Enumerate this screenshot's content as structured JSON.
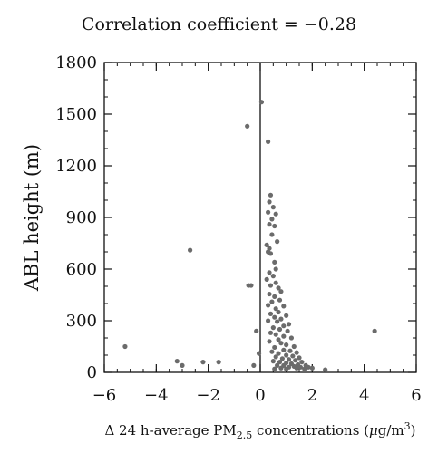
{
  "chart_data": {
    "type": "scatter",
    "title": "Correlation coefficient = −0.28",
    "xlabel_main": "Δ 24 h-average PM",
    "xlabel_sub": "2.5",
    "xlabel_rest": " concentrations (",
    "xlabel_mu": "μ",
    "xlabel_unit": "g/m",
    "xlabel_sup": "3",
    "xlabel_close": ")",
    "ylabel": "ABL height (m)",
    "xlim": [
      -6,
      6
    ],
    "ylim": [
      0,
      1800
    ],
    "x_ticks": [
      -6,
      -4,
      -2,
      0,
      2,
      4,
      6
    ],
    "x_tick_labels": [
      "−6",
      "−4",
      "−2",
      "0",
      "2",
      "4",
      "6"
    ],
    "y_ticks": [
      0,
      300,
      600,
      900,
      1200,
      1500,
      1800
    ],
    "y_tick_labels": [
      "0",
      "300",
      "600",
      "900",
      "1200",
      "1500",
      "1800"
    ],
    "zero_line_x": 0,
    "grid": false,
    "marker_color": "#6b6b6b",
    "points": [
      {
        "x": -5.2,
        "y": 150
      },
      {
        "x": -3.2,
        "y": 65
      },
      {
        "x": -3.0,
        "y": 40
      },
      {
        "x": -2.7,
        "y": 710
      },
      {
        "x": -2.2,
        "y": 60
      },
      {
        "x": -1.6,
        "y": 60
      },
      {
        "x": -0.5,
        "y": 1430
      },
      {
        "x": -0.45,
        "y": 505
      },
      {
        "x": -0.35,
        "y": 505
      },
      {
        "x": -0.25,
        "y": 40
      },
      {
        "x": -0.15,
        "y": 240
      },
      {
        "x": -0.05,
        "y": 110
      },
      {
        "x": 0.05,
        "y": 1570
      },
      {
        "x": 0.3,
        "y": 1340
      },
      {
        "x": 0.4,
        "y": 1030
      },
      {
        "x": 0.35,
        "y": 990
      },
      {
        "x": 0.5,
        "y": 960
      },
      {
        "x": 0.3,
        "y": 930
      },
      {
        "x": 0.6,
        "y": 920
      },
      {
        "x": 0.45,
        "y": 890
      },
      {
        "x": 0.35,
        "y": 860
      },
      {
        "x": 0.55,
        "y": 850
      },
      {
        "x": 0.45,
        "y": 800
      },
      {
        "x": 0.65,
        "y": 760
      },
      {
        "x": 0.25,
        "y": 740
      },
      {
        "x": 0.35,
        "y": 720
      },
      {
        "x": 0.3,
        "y": 700
      },
      {
        "x": 0.4,
        "y": 690
      },
      {
        "x": 0.55,
        "y": 640
      },
      {
        "x": 0.6,
        "y": 600
      },
      {
        "x": 0.35,
        "y": 580
      },
      {
        "x": 0.5,
        "y": 560
      },
      {
        "x": 0.25,
        "y": 540
      },
      {
        "x": 0.6,
        "y": 520
      },
      {
        "x": 0.4,
        "y": 505
      },
      {
        "x": 0.7,
        "y": 490
      },
      {
        "x": 0.8,
        "y": 470
      },
      {
        "x": 0.35,
        "y": 455
      },
      {
        "x": 0.55,
        "y": 440
      },
      {
        "x": 0.75,
        "y": 420
      },
      {
        "x": 0.45,
        "y": 410
      },
      {
        "x": 0.3,
        "y": 390
      },
      {
        "x": 0.9,
        "y": 385
      },
      {
        "x": 0.6,
        "y": 370
      },
      {
        "x": 0.7,
        "y": 350
      },
      {
        "x": 0.4,
        "y": 340
      },
      {
        "x": 0.55,
        "y": 320
      },
      {
        "x": 1.0,
        "y": 330
      },
      {
        "x": 0.8,
        "y": 310
      },
      {
        "x": 0.3,
        "y": 300
      },
      {
        "x": 0.65,
        "y": 295
      },
      {
        "x": 1.1,
        "y": 280
      },
      {
        "x": 0.9,
        "y": 270
      },
      {
        "x": 0.5,
        "y": 260
      },
      {
        "x": 0.75,
        "y": 250
      },
      {
        "x": 1.05,
        "y": 240
      },
      {
        "x": 0.4,
        "y": 230
      },
      {
        "x": 0.6,
        "y": 220
      },
      {
        "x": 0.9,
        "y": 210
      },
      {
        "x": 1.2,
        "y": 200
      },
      {
        "x": 0.7,
        "y": 190
      },
      {
        "x": 0.35,
        "y": 180
      },
      {
        "x": 0.8,
        "y": 170
      },
      {
        "x": 1.0,
        "y": 160
      },
      {
        "x": 1.3,
        "y": 150
      },
      {
        "x": 0.55,
        "y": 145
      },
      {
        "x": 0.9,
        "y": 130
      },
      {
        "x": 1.15,
        "y": 125
      },
      {
        "x": 0.45,
        "y": 120
      },
      {
        "x": 1.4,
        "y": 115
      },
      {
        "x": 0.7,
        "y": 110
      },
      {
        "x": 1.0,
        "y": 100
      },
      {
        "x": 1.25,
        "y": 95
      },
      {
        "x": 0.6,
        "y": 90
      },
      {
        "x": 1.5,
        "y": 85
      },
      {
        "x": 0.85,
        "y": 80
      },
      {
        "x": 1.1,
        "y": 75
      },
      {
        "x": 1.35,
        "y": 70
      },
      {
        "x": 0.5,
        "y": 65
      },
      {
        "x": 0.75,
        "y": 60
      },
      {
        "x": 1.6,
        "y": 60
      },
      {
        "x": 1.0,
        "y": 55
      },
      {
        "x": 1.2,
        "y": 50
      },
      {
        "x": 1.45,
        "y": 45
      },
      {
        "x": 0.65,
        "y": 40
      },
      {
        "x": 0.9,
        "y": 40
      },
      {
        "x": 1.75,
        "y": 40
      },
      {
        "x": 1.3,
        "y": 35
      },
      {
        "x": 1.55,
        "y": 30
      },
      {
        "x": 1.1,
        "y": 30
      },
      {
        "x": 1.85,
        "y": 30
      },
      {
        "x": 0.8,
        "y": 25
      },
      {
        "x": 1.4,
        "y": 25
      },
      {
        "x": 1.7,
        "y": 20
      },
      {
        "x": 2.0,
        "y": 25
      },
      {
        "x": 2.5,
        "y": 15
      },
      {
        "x": 0.55,
        "y": 20
      },
      {
        "x": 1.0,
        "y": 20
      },
      {
        "x": 4.4,
        "y": 240
      }
    ]
  }
}
